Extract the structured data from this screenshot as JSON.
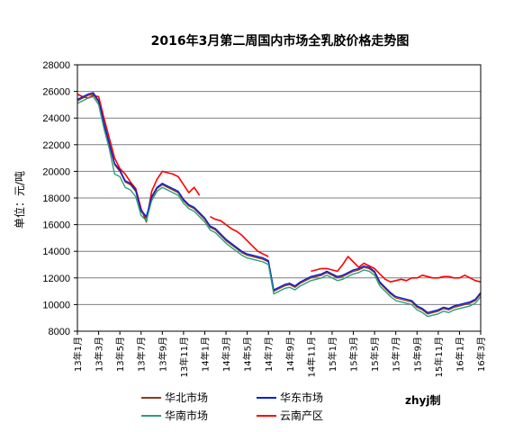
{
  "chart_data": {
    "type": "line",
    "title": "2016年3月第二周国内市场全乳胶价格走势图",
    "ylabel": "单位：元/吨",
    "xlabel": "",
    "ylim": [
      8000,
      28000
    ],
    "yticks": [
      8000,
      10000,
      12000,
      14000,
      16000,
      18000,
      20000,
      22000,
      24000,
      26000,
      28000
    ],
    "ytick_labels": [
      "8000",
      "10000",
      "12000",
      "14000",
      "16000",
      "18000",
      "20000",
      "22000",
      "24000",
      "26000",
      "28000"
    ],
    "xlim": [
      0,
      38
    ],
    "xtick_labels": [
      "13年1月",
      "13年3月",
      "13年5月",
      "13年7月",
      "13年9月",
      "13年11月",
      "14年1月",
      "14年3月",
      "14年5月",
      "14年7月",
      "14年9月",
      "14年11月",
      "15年1月",
      "15年3月",
      "15年5月",
      "15年7月",
      "15年9月",
      "15年11月",
      "16年1月",
      "16年3月"
    ],
    "grid": true,
    "legend_position": "bottom",
    "credit": "zhyj制",
    "colors": {
      "north": "#8B3A1A",
      "east": "#0A1ED8",
      "south": "#2E9E7A",
      "yunnan": "#FF0000",
      "grid": "#7F7F7F"
    },
    "series": [
      {
        "name": "华北市场",
        "color": "#8B3A1A",
        "x": [
          0,
          0.5,
          1,
          1.5,
          2,
          2.5,
          3,
          3.5,
          4,
          4.5,
          5,
          5.5,
          6,
          6.5,
          7,
          7.5,
          8,
          8.5,
          9,
          9.5,
          10,
          10.5,
          11,
          11.5,
          12,
          12.5,
          13,
          13.5,
          14,
          14.5,
          15,
          15.5,
          16,
          16.5,
          17,
          17.5,
          18,
          18.5,
          19,
          19.5,
          20,
          20.5,
          21,
          21.5,
          22,
          22.5,
          23,
          23.5,
          24,
          24.5,
          25,
          25.5,
          26,
          26.5,
          27,
          27.5,
          28,
          28.5,
          29,
          29.5,
          30,
          30.5,
          31,
          31.5,
          32,
          32.5,
          33,
          33.5,
          34,
          34.5,
          35,
          35.5,
          36,
          36.5,
          37,
          37.5,
          38
        ],
        "values": [
          25300,
          25500,
          25700,
          25800,
          25200,
          23500,
          22000,
          20500,
          20000,
          19200,
          19000,
          18500,
          17000,
          16500,
          18000,
          18700,
          19000,
          18800,
          18600,
          18400,
          17800,
          17400,
          17200,
          16800,
          16400,
          15800,
          15600,
          15200,
          14800,
          14500,
          14200,
          13900,
          13700,
          13600,
          13500,
          13400,
          13200,
          11000,
          11200,
          11400,
          11500,
          11300,
          11600,
          11800,
          12000,
          12100,
          12200,
          12400,
          12200,
          12000,
          12100,
          12300,
          12500,
          12600,
          12800,
          12700,
          12400,
          11600,
          11200,
          10800,
          10500,
          10400,
          10300,
          10200,
          9800,
          9600,
          9300,
          9400,
          9500,
          9700,
          9600,
          9800,
          9900,
          10000,
          10100,
          10300,
          10800
        ]
      },
      {
        "name": "华东市场",
        "color": "#0A1ED8",
        "x": [
          0,
          0.5,
          1,
          1.5,
          2,
          2.5,
          3,
          3.5,
          4,
          4.5,
          5,
          5.5,
          6,
          6.5,
          7,
          7.5,
          8,
          8.5,
          9,
          9.5,
          10,
          10.5,
          11,
          11.5,
          12,
          12.5,
          13,
          13.5,
          14,
          14.5,
          15,
          15.5,
          16,
          16.5,
          17,
          17.5,
          18,
          18.5,
          19,
          19.5,
          20,
          20.5,
          21,
          21.5,
          22,
          22.5,
          23,
          23.5,
          24,
          24.5,
          25,
          25.5,
          26,
          26.5,
          27,
          27.5,
          28,
          28.5,
          29,
          29.5,
          30,
          30.5,
          31,
          31.5,
          32,
          32.5,
          33,
          33.5,
          34,
          34.5,
          35,
          35.5,
          36,
          36.5,
          37,
          37.5,
          38
        ],
        "values": [
          25400,
          25600,
          25800,
          25900,
          25300,
          23600,
          22100,
          20600,
          20100,
          19300,
          19100,
          18600,
          17100,
          16600,
          18100,
          18800,
          19100,
          18900,
          18700,
          18500,
          17900,
          17500,
          17300,
          16900,
          16500,
          15900,
          15700,
          15300,
          14900,
          14600,
          14300,
          14000,
          13800,
          13700,
          13600,
          13500,
          13300,
          11100,
          11300,
          11500,
          11600,
          11400,
          11700,
          11900,
          12100,
          12200,
          12300,
          12500,
          12300,
          12100,
          12200,
          12400,
          12600,
          12700,
          12900,
          12800,
          12500,
          11700,
          11300,
          10900,
          10600,
          10500,
          10400,
          10300,
          9900,
          9700,
          9400,
          9500,
          9600,
          9800,
          9700,
          9900,
          10000,
          10100,
          10200,
          10400,
          10900
        ]
      },
      {
        "name": "华南市场",
        "color": "#2E9E7A",
        "x": [
          0,
          0.5,
          1,
          1.5,
          2,
          2.5,
          3,
          3.5,
          4,
          4.5,
          5,
          5.5,
          6,
          6.5,
          7,
          7.5,
          8,
          8.5,
          9,
          9.5,
          10,
          10.5,
          11,
          11.5,
          12,
          12.5,
          13,
          13.5,
          14,
          14.5,
          15,
          15.5,
          16,
          16.5,
          17,
          17.5,
          18,
          18.5,
          19,
          19.5,
          20,
          20.5,
          21,
          21.5,
          22,
          22.5,
          23,
          23.5,
          24,
          24.5,
          25,
          25.5,
          26,
          26.5,
          27,
          27.5,
          28,
          28.5,
          29,
          29.5,
          30,
          30.5,
          31,
          31.5,
          32,
          32.5,
          33,
          33.5,
          34,
          34.5,
          35,
          35.5,
          36,
          36.5,
          37,
          37.5,
          38
        ],
        "values": [
          25100,
          25300,
          25500,
          25600,
          25000,
          23200,
          21700,
          19800,
          19600,
          18800,
          18600,
          18100,
          16700,
          16300,
          17800,
          18500,
          18800,
          18600,
          18400,
          18200,
          17600,
          17200,
          17000,
          16600,
          16200,
          15600,
          15400,
          15000,
          14600,
          14300,
          14000,
          13700,
          13500,
          13400,
          13300,
          13200,
          13000,
          10800,
          11000,
          11200,
          11300,
          11100,
          11400,
          11600,
          11800,
          11900,
          12000,
          12200,
          12000,
          11800,
          11900,
          12100,
          12300,
          12400,
          12600,
          12500,
          12200,
          11400,
          11000,
          10600,
          10300,
          10200,
          10100,
          10000,
          9600,
          9400,
          9100,
          9200,
          9300,
          9500,
          9400,
          9600,
          9700,
          9800,
          9900,
          10100,
          10600
        ]
      },
      {
        "name": "云南产区",
        "color": "#FF0000",
        "x": [
          0,
          0.5,
          1,
          1.5,
          2,
          2.5,
          3,
          3.5,
          4,
          4.5,
          5,
          5.5,
          6,
          6.5,
          7,
          7.5,
          8,
          8.5,
          9,
          9.5,
          10,
          10.5,
          11,
          11.5,
          12,
          12.5,
          13,
          13.5,
          14,
          14.5,
          15,
          15.5,
          16,
          16.5,
          17,
          17.5,
          18,
          18.5,
          19,
          19.5,
          20,
          20.5,
          21,
          21.5,
          22,
          22.5,
          23,
          23.5,
          24,
          24.5,
          25,
          25.5,
          26,
          26.5,
          27,
          27.5,
          28,
          28.5,
          29,
          29.5,
          30,
          30.5,
          31,
          31.5,
          32,
          32.5,
          33,
          33.5,
          34,
          34.5,
          35,
          35.5,
          36,
          36.5,
          37,
          37.5,
          38
        ],
        "values": [
          25800,
          25600,
          25500,
          25700,
          25600,
          24000,
          22500,
          21000,
          20200,
          19800,
          19200,
          18700,
          17200,
          16200,
          18500,
          19400,
          20000,
          19900,
          19800,
          19600,
          19000,
          18400,
          18800,
          18200,
          null,
          16600,
          16400,
          16300,
          16000,
          15700,
          15500,
          15200,
          14800,
          14400,
          14000,
          13800,
          13600,
          null,
          null,
          null,
          null,
          null,
          12100,
          null,
          12500,
          12600,
          12700,
          12700,
          12600,
          12500,
          13000,
          13600,
          13200,
          12800,
          13100,
          12900,
          12700,
          12300,
          11900,
          11700,
          11800,
          11900,
          11800,
          12000,
          12000,
          12200,
          12100,
          12000,
          12000,
          12100,
          12100,
          12000,
          12000,
          12200,
          12000,
          11800,
          11700
        ]
      }
    ]
  }
}
